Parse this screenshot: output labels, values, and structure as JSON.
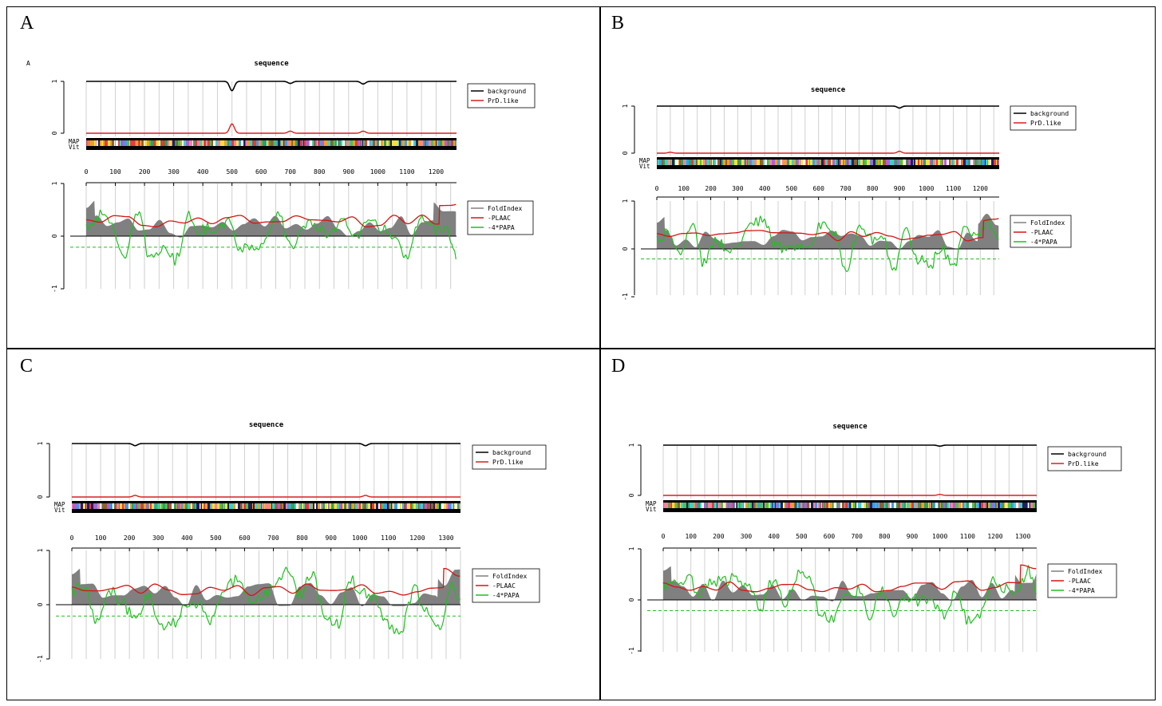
{
  "colors": {
    "background": "#000000",
    "prd_like": "#d62020",
    "foldindex": "#808080",
    "plaac": "#d61414",
    "papa": "#1fbf1f",
    "papa_threshold": "#1fbf1f",
    "gridline": "#d0d0d0"
  },
  "chart_data": [
    {
      "panel": "A",
      "corner_label": "A",
      "type": "line",
      "title": "sequence",
      "xlim": [
        0,
        1270
      ],
      "x_ticks": [
        "0",
        "100",
        "200",
        "300",
        "400",
        "500",
        "600",
        "700",
        "800",
        "900",
        "1000",
        "1100",
        "1200"
      ],
      "top_plot": {
        "y_ticks": [
          "0",
          "1"
        ],
        "series": [
          {
            "name": "background",
            "values_desc": "near 1.0",
            "dips": [
              [
                500,
                0.82
              ],
              [
                700,
                0.96
              ],
              [
                950,
                0.95
              ]
            ]
          },
          {
            "name": "PrD.like",
            "values_desc": "near 0.0",
            "peaks": [
              [
                500,
                0.18
              ],
              [
                700,
                0.04
              ],
              [
                950,
                0.04
              ]
            ]
          }
        ]
      },
      "track_labels": [
        "MAP",
        "Vit"
      ],
      "bottom_plot": {
        "y_ticks": [
          "-1",
          "0",
          "1"
        ],
        "ylim": [
          -1.1,
          1.1
        ],
        "series": [
          {
            "name": "FoldIndex",
            "type": "area"
          },
          {
            "name": "-PLAAC",
            "type": "line"
          },
          {
            "name": "-4*PAPA",
            "type": "line"
          }
        ],
        "papa_threshold": -0.21
      }
    },
    {
      "panel": "B",
      "corner_label": "",
      "type": "line",
      "title": "sequence",
      "xlim": [
        0,
        1270
      ],
      "x_ticks": [
        "0",
        "100",
        "200",
        "300",
        "400",
        "500",
        "600",
        "700",
        "800",
        "900",
        "1000",
        "1100",
        "1200"
      ],
      "top_plot": {
        "y_ticks": [
          "0",
          "1"
        ],
        "series": [
          {
            "name": "background",
            "values_desc": "near 1.0",
            "dips": [
              [
                900,
                0.96
              ]
            ]
          },
          {
            "name": "PrD.like",
            "values_desc": "near 0.0",
            "peaks": [
              [
                900,
                0.04
              ],
              [
                50,
                0.02
              ]
            ]
          }
        ]
      },
      "track_labels": [
        "MAP",
        "Vit"
      ],
      "bottom_plot": {
        "y_ticks": [
          "-1",
          "0",
          "1"
        ],
        "ylim": [
          -1.1,
          1.1
        ],
        "series": [
          {
            "name": "FoldIndex",
            "type": "area"
          },
          {
            "name": "-PLAAC",
            "type": "line"
          },
          {
            "name": "-4*PAPA",
            "type": "line"
          }
        ],
        "papa_threshold": -0.21
      }
    },
    {
      "panel": "C",
      "corner_label": "",
      "type": "line",
      "title": "sequence",
      "xlim": [
        0,
        1350
      ],
      "x_ticks": [
        "0",
        "100",
        "200",
        "300",
        "400",
        "500",
        "600",
        "700",
        "800",
        "900",
        "1000",
        "1100",
        "1200",
        "1300"
      ],
      "top_plot": {
        "y_ticks": [
          "0",
          "1"
        ],
        "series": [
          {
            "name": "background",
            "values_desc": "near 1.0",
            "dips": [
              [
                220,
                0.96
              ],
              [
                1020,
                0.96
              ]
            ]
          },
          {
            "name": "PrD.like",
            "values_desc": "near 0.0",
            "peaks": [
              [
                220,
                0.03
              ],
              [
                1020,
                0.03
              ]
            ]
          }
        ]
      },
      "track_labels": [
        "MAP",
        "Vit"
      ],
      "bottom_plot": {
        "y_ticks": [
          "-1",
          "0",
          "1"
        ],
        "ylim": [
          -1.1,
          1.1
        ],
        "series": [
          {
            "name": "FoldIndex",
            "type": "area"
          },
          {
            "name": "-PLAAC",
            "type": "line"
          },
          {
            "name": "-4*PAPA",
            "type": "line"
          }
        ],
        "papa_threshold": -0.21
      }
    },
    {
      "panel": "D",
      "corner_label": "",
      "type": "line",
      "title": "sequence",
      "xlim": [
        0,
        1350
      ],
      "x_ticks": [
        "0",
        "100",
        "200",
        "300",
        "400",
        "500",
        "600",
        "700",
        "800",
        "900",
        "1000",
        "1100",
        "1200",
        "1300"
      ],
      "top_plot": {
        "y_ticks": [
          "0",
          "1"
        ],
        "series": [
          {
            "name": "background",
            "values_desc": "near 1.0",
            "dips": [
              [
                1000,
                0.98
              ]
            ]
          },
          {
            "name": "PrD.like",
            "values_desc": "near 0.0",
            "peaks": [
              [
                1000,
                0.02
              ]
            ]
          }
        ]
      },
      "track_labels": [
        "MAP",
        "Vit"
      ],
      "bottom_plot": {
        "y_ticks": [
          "-1",
          "0",
          "1"
        ],
        "ylim": [
          -1.1,
          1.1
        ],
        "series": [
          {
            "name": "FoldIndex",
            "type": "area"
          },
          {
            "name": "-PLAAC",
            "type": "line"
          },
          {
            "name": "-4*PAPA",
            "type": "line"
          }
        ],
        "papa_threshold": -0.21
      }
    }
  ],
  "panel_labels": [
    "A",
    "B",
    "C",
    "D"
  ]
}
